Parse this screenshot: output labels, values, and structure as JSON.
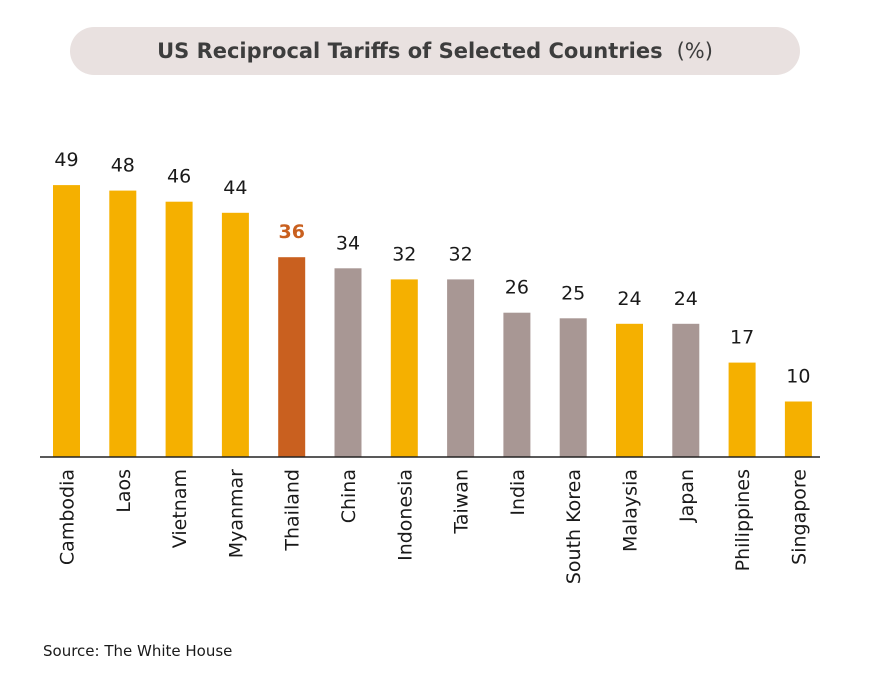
{
  "colors": {
    "asean": "#f5b000",
    "highlight": "#c9601f",
    "other": "#a89794",
    "title_bg": "#e9e1e0"
  },
  "source": "Source: The White House",
  "chart_data": {
    "type": "bar",
    "title": "US Reciprocal Tariffs of Selected Countries",
    "title_unit": "(%)",
    "xlabel": "",
    "ylabel": "",
    "ylim": [
      0,
      50
    ],
    "grid": false,
    "categories": [
      "Cambodia",
      "Laos",
      "Vietnam",
      "Myanmar",
      "Thailand",
      "China",
      "Indonesia",
      "Taiwan",
      "India",
      "South Korea",
      "Malaysia",
      "Japan",
      "Philippines",
      "Singapore"
    ],
    "values": [
      49,
      48,
      46,
      44,
      36,
      34,
      32,
      32,
      26,
      25,
      24,
      24,
      17,
      10
    ],
    "bar_colors": [
      "#f5b000",
      "#f5b000",
      "#f5b000",
      "#f5b000",
      "#c9601f",
      "#a89794",
      "#f5b000",
      "#a89794",
      "#a89794",
      "#a89794",
      "#f5b000",
      "#a89794",
      "#f5b000",
      "#f5b000"
    ],
    "highlighted": "Thailand"
  }
}
